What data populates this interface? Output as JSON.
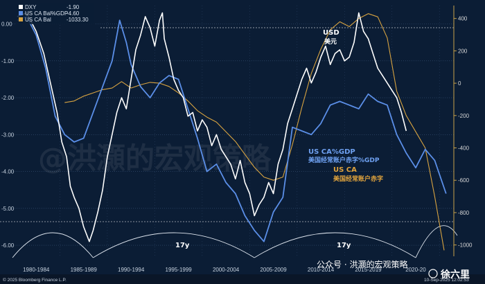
{
  "chart_data": {
    "type": "line",
    "legend": [
      {
        "name": "DXY",
        "value": "-1.90",
        "color": "#ffffff"
      },
      {
        "name": "US CA Bal%GDP",
        "value": "-4.60",
        "color": "#5b8fe8"
      },
      {
        "name": "US CA Bal",
        "value": "-1033.30",
        "color": "#d9a441"
      }
    ],
    "x_ticks": [
      "1980-1984",
      "1985-1989",
      "1990-1994",
      "1995-1999",
      "2000-2004",
      "2005-2009",
      "2010-2014",
      "2015-2019",
      "2020-20"
    ],
    "x_tick_years": [
      1982,
      1987,
      1992,
      1997,
      2002,
      2007,
      2012,
      2017,
      2022
    ],
    "xlim": [
      1979.5,
      2025.8
    ],
    "y_left": {
      "ticks": [
        "0.00",
        "-1.00",
        "-2.00",
        "-3.00",
        "-4.00",
        "-5.00",
        "-6.00"
      ],
      "ylim": [
        -6.3,
        0.5
      ]
    },
    "y_right": {
      "ticks": [
        "400",
        "200",
        "0",
        "-200",
        "-400",
        "-600",
        "-800",
        "-1000"
      ],
      "ylim": [
        -1070,
        480
      ]
    },
    "series": [
      {
        "name": "DXY",
        "axis": "left",
        "x": [
          1980.0,
          1981.0,
          1982.0,
          1982.8,
          1983.5,
          1984.2,
          1984.7,
          1985.2,
          1985.6,
          1986.0,
          1986.5,
          1987.0,
          1987.6,
          1988.0,
          1988.5,
          1989.0,
          1989.5,
          1990.0,
          1990.5,
          1991.0,
          1991.5,
          1992.0,
          1992.5,
          1993.0,
          1993.5,
          1994.0,
          1994.5,
          1995.0,
          1995.3,
          1995.5,
          1996.0,
          1996.5,
          1997.0,
          1997.5,
          1998.0,
          1998.5,
          1999.0,
          1999.5,
          2000.0,
          2000.5,
          2001.0,
          2001.5,
          2002.0,
          2002.5,
          2003.0,
          2003.5,
          2004.0,
          2004.5,
          2005.0,
          2005.5,
          2006.0,
          2006.5,
          2007.0,
          2007.5,
          2008.0,
          2008.5,
          2009.0,
          2009.5,
          2010.0,
          2010.5,
          2011.0,
          2011.5,
          2012.0,
          2012.5,
          2013.0,
          2013.5,
          2014.0,
          2014.5,
          2015.0,
          2015.5,
          2016.0,
          2016.5,
          2017.0,
          2017.5,
          2018.0,
          2018.5,
          2019.0,
          2019.5,
          2020.0,
          2020.5,
          2021.0
        ],
        "values": [
          0.2,
          0.3,
          -0.2,
          -0.8,
          -1.6,
          -2.4,
          -3.2,
          -3.6,
          -4.4,
          -4.7,
          -5.0,
          -5.5,
          -5.9,
          -5.6,
          -5.1,
          -4.5,
          -3.6,
          -3.0,
          -2.4,
          -2.0,
          -2.3,
          -1.5,
          -0.7,
          -0.3,
          0.2,
          -0.1,
          -0.6,
          0.1,
          0.3,
          -0.4,
          -0.9,
          -1.5,
          -1.8,
          -2.0,
          -2.5,
          -2.4,
          -2.9,
          -2.6,
          -2.8,
          -3.3,
          -3.0,
          -3.4,
          -3.6,
          -3.8,
          -4.2,
          -3.7,
          -4.3,
          -4.6,
          -5.2,
          -4.9,
          -4.7,
          -4.3,
          -4.6,
          -3.8,
          -3.4,
          -2.7,
          -2.3,
          -1.9,
          -1.5,
          -1.2,
          -1.6,
          -1.3,
          -0.9,
          -0.6,
          -1.1,
          -0.8,
          -0.7,
          -1.0,
          -0.9,
          -0.5,
          0.3,
          -0.2,
          -0.4,
          -0.8,
          -1.2,
          -1.4,
          -1.6,
          -1.8,
          -2.0,
          -2.4,
          -2.9
        ]
      },
      {
        "name": "US CA Bal%GDP",
        "axis": "left",
        "x": [
          1980.0,
          1981.0,
          1982.0,
          1983.0,
          1984.0,
          1985.0,
          1986.0,
          1987.0,
          1988.0,
          1989.0,
          1990.0,
          1990.8,
          1991.5,
          1992.0,
          1993.0,
          1994.0,
          1995.0,
          1996.0,
          1997.0,
          1998.0,
          1999.0,
          2000.0,
          2001.0,
          2002.0,
          2003.0,
          2004.0,
          2005.0,
          2006.0,
          2007.0,
          2008.0,
          2009.0,
          2010.0,
          2011.0,
          2012.0,
          2013.0,
          2014.0,
          2015.0,
          2016.0,
          2017.0,
          2018.0,
          2019.0,
          2020.0,
          2021.0,
          2022.0,
          2023.0,
          2024.0,
          2025.2
        ],
        "values": [
          0.1,
          0.2,
          -0.3,
          -1.2,
          -2.5,
          -3.0,
          -3.2,
          -3.1,
          -2.4,
          -1.7,
          -1.0,
          0.1,
          -0.5,
          -1.1,
          -1.7,
          -2.0,
          -1.6,
          -1.4,
          -1.5,
          -2.3,
          -3.1,
          -4.0,
          -3.8,
          -4.3,
          -4.6,
          -5.2,
          -5.6,
          -5.9,
          -5.1,
          -4.7,
          -2.8,
          -2.9,
          -3.0,
          -2.7,
          -2.2,
          -2.1,
          -2.2,
          -2.3,
          -1.9,
          -2.1,
          -2.2,
          -3.0,
          -3.5,
          -3.9,
          -3.4,
          -3.7,
          -4.6
        ]
      },
      {
        "name": "US CA Bal",
        "axis": "right",
        "x": [
          1985.0,
          1986.0,
          1987.0,
          1988.0,
          1989.0,
          1990.0,
          1991.0,
          1992.0,
          1993.0,
          1994.0,
          1995.0,
          1996.0,
          1997.0,
          1998.0,
          1999.0,
          2000.0,
          2001.0,
          2002.0,
          2003.0,
          2004.0,
          2005.0,
          2006.0,
          2007.0,
          2008.0,
          2009.0,
          2010.0,
          2011.0,
          2012.0,
          2013.0,
          2014.0,
          2015.0,
          2016.0,
          2017.0,
          2018.0,
          2019.0,
          2020.0,
          2021.0,
          2022.0,
          2023.0,
          2024.0,
          2025.0
        ],
        "values": [
          -120,
          -110,
          -80,
          -60,
          -40,
          -30,
          10,
          -30,
          -10,
          5,
          0,
          -20,
          -60,
          -110,
          -170,
          -210,
          -240,
          -300,
          -360,
          -440,
          -520,
          -580,
          -600,
          -580,
          -380,
          -150,
          60,
          210,
          330,
          380,
          350,
          400,
          430,
          410,
          280,
          -50,
          -200,
          -300,
          -400,
          -700,
          -1033
        ]
      }
    ],
    "annotations": {
      "usd_en": "USD",
      "usd_cn": "美元",
      "cagdp_en": "US CA%GDP",
      "cagdp_cn": "美国经常账户赤字%GDP",
      "ca_en": "US CA",
      "ca_cn": "美国经常账户赤字",
      "cycle1": "17y",
      "cycle2": "17y",
      "watermark_cn": "@洪灝的宏观策略",
      "footer": "© 2025 Bloomberg Finance L.P.",
      "timestamp": "10-Sep-2025 12:02:53",
      "wechat": "公众号 · 洪灝的宏观策略",
      "weibo": "徐六里"
    },
    "grid": true,
    "legend_position": "top-left"
  }
}
